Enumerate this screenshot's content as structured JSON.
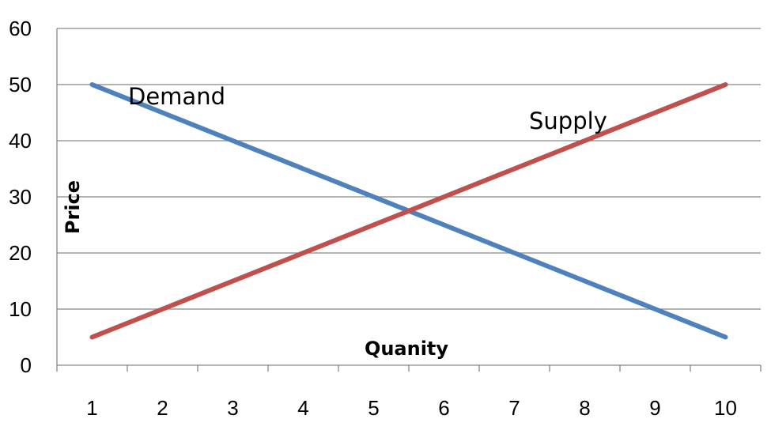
{
  "chart_data": {
    "type": "line",
    "title": "",
    "xlabel": "Quanity",
    "ylabel": "Price",
    "x": [
      1,
      2,
      3,
      4,
      5,
      6,
      7,
      8,
      9,
      10
    ],
    "xlim": [
      0.5,
      10.5
    ],
    "ylim": [
      0,
      60
    ],
    "y_ticks": [
      "0",
      "10",
      "20",
      "30",
      "40",
      "50",
      "60"
    ],
    "x_ticks": [
      "1",
      "2",
      "3",
      "4",
      "5",
      "6",
      "7",
      "8",
      "9",
      "10"
    ],
    "grid": true,
    "legend": "none",
    "series": [
      {
        "name": "Demand",
        "color": "#4F81BD",
        "values": [
          50,
          45,
          40,
          35,
          30,
          25,
          20,
          15,
          10,
          5
        ]
      },
      {
        "name": "Supply",
        "color": "#C0504D",
        "values": [
          5,
          10,
          15,
          20,
          25,
          30,
          35,
          40,
          45,
          50
        ]
      }
    ]
  }
}
